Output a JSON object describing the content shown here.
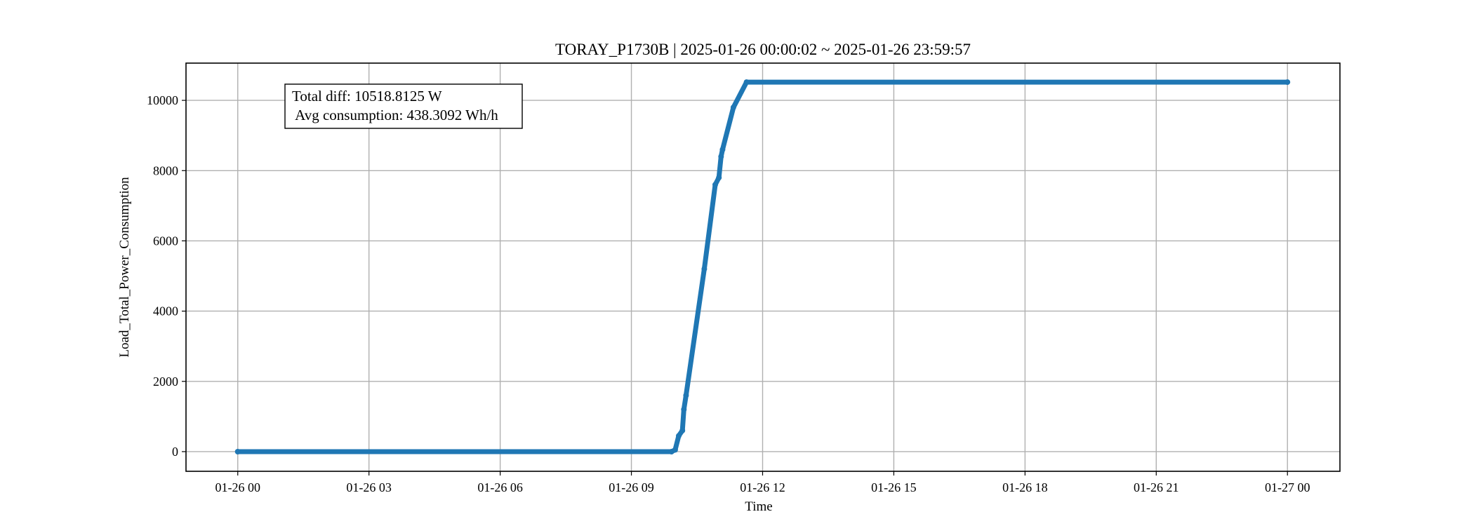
{
  "chart_data": {
    "type": "scatter",
    "title": "TORAY_P1730B | 2025-01-26 00:00:02 ~ 2025-01-26 23:59:57",
    "xlabel": "Time",
    "ylabel": "Load_Total_Power_Consumption",
    "xlim": [
      "2025-01-25 22:49",
      "2025-01-27 01:12"
    ],
    "ylim": [
      -560,
      11060
    ],
    "x_ticks": [
      "2025-01-26 00:00",
      "2025-01-26 03:00",
      "2025-01-26 06:00",
      "2025-01-26 09:00",
      "2025-01-26 12:00",
      "2025-01-26 15:00",
      "2025-01-26 18:00",
      "2025-01-26 21:00",
      "2025-01-27 00:00"
    ],
    "x_tick_labels": [
      "01-26 00",
      "01-26 03",
      "01-26 06",
      "01-26 09",
      "01-26 12",
      "01-26 15",
      "01-26 18",
      "01-26 21",
      "01-27 00"
    ],
    "y_ticks": [
      0,
      2000,
      4000,
      6000,
      8000,
      10000
    ],
    "y_tick_labels": [
      "0",
      "2000",
      "4000",
      "6000",
      "8000",
      "10000"
    ],
    "grid": true,
    "series": [
      {
        "color": "#1f77b4",
        "x": [
          "2025-01-26 00:00",
          "2025-01-26 09:55",
          "2025-01-26 10:00",
          "2025-01-26 10:05",
          "2025-01-26 10:10",
          "2025-01-26 10:12",
          "2025-01-26 10:15",
          "2025-01-26 10:40",
          "2025-01-26 10:55",
          "2025-01-26 11:00",
          "2025-01-26 11:03",
          "2025-01-26 11:05",
          "2025-01-26 11:20",
          "2025-01-26 11:38",
          "2025-01-27 00:00"
        ],
        "y": [
          0,
          0,
          50,
          450,
          600,
          1200,
          1600,
          5200,
          7600,
          7800,
          8400,
          8600,
          9800,
          10519,
          10519
        ]
      }
    ],
    "annotations": [
      "Total diff: 10518.8125 W",
      " Avg consumption: 438.3092 Wh/h"
    ]
  }
}
